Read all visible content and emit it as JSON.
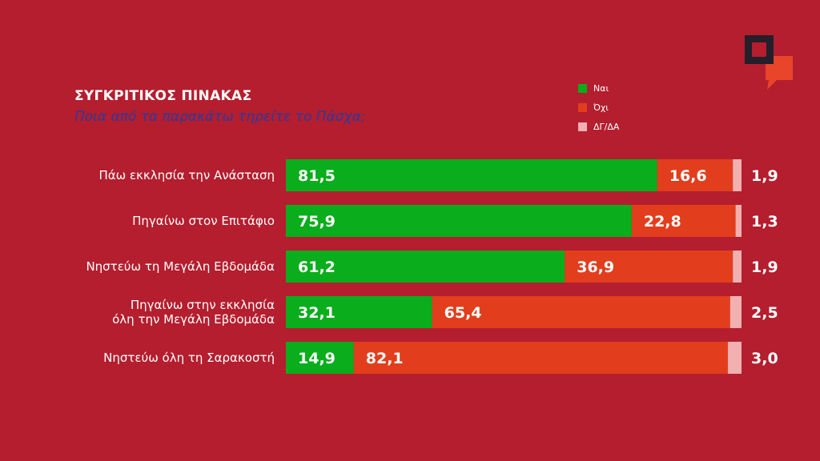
{
  "colors": {
    "yes": "#0aad1c",
    "no": "#e23e1d",
    "dk": "#f2b0b0",
    "background": "#b41e2e",
    "subtitle": "#2a3a9e"
  },
  "logo": {
    "icon": "speech-bubbles-logo"
  },
  "chart_data": {
    "type": "bar",
    "orientation": "horizontal",
    "stacked": true,
    "title": "ΣΥΓΚΡΙΤΙΚΟΣ ΠΙΝΑΚΑΣ",
    "subtitle": "Ποια από τα παρακάτω τηρείτε το Πάσχα;",
    "xlim": [
      0,
      100
    ],
    "grid": false,
    "legend_position": "top-right",
    "categories": [
      "Πάω εκκλησία την Ανάσταση",
      "Πηγαίνω στον Επιτάφιο",
      "Νηστεύω τη Μεγάλη Εβδομάδα",
      "Πηγαίνω στην εκκλησία όλη την Μεγάλη Εβδομάδα",
      "Νηστεύω όλη τη Σαρακοστή"
    ],
    "category_lines": [
      [
        "Πάω εκκλησία την Ανάσταση"
      ],
      [
        "Πηγαίνω στον Επιτάφιο"
      ],
      [
        "Νηστεύω τη Μεγάλη Εβδομάδα"
      ],
      [
        "Πηγαίνω στην εκκλησία",
        "όλη την Μεγάλη Εβδομάδα"
      ],
      [
        "Νηστεύω όλη τη Σαρακοστή"
      ]
    ],
    "series": [
      {
        "name": "Ναι",
        "values": [
          81.5,
          75.9,
          61.2,
          32.1,
          14.9
        ],
        "labels": [
          "81,5",
          "75,9",
          "61,2",
          "32,1",
          "14,9"
        ]
      },
      {
        "name": "Όχι",
        "values": [
          16.6,
          22.8,
          36.9,
          65.4,
          82.1
        ],
        "labels": [
          "16,6",
          "22,8",
          "36,9",
          "65,4",
          "82,1"
        ]
      },
      {
        "name": "ΔΓ/ΔΑ",
        "values": [
          1.9,
          1.3,
          1.9,
          2.5,
          3.0
        ],
        "labels": [
          "1,9",
          "1,3",
          "1,9",
          "2,5",
          "3,0"
        ]
      }
    ]
  }
}
